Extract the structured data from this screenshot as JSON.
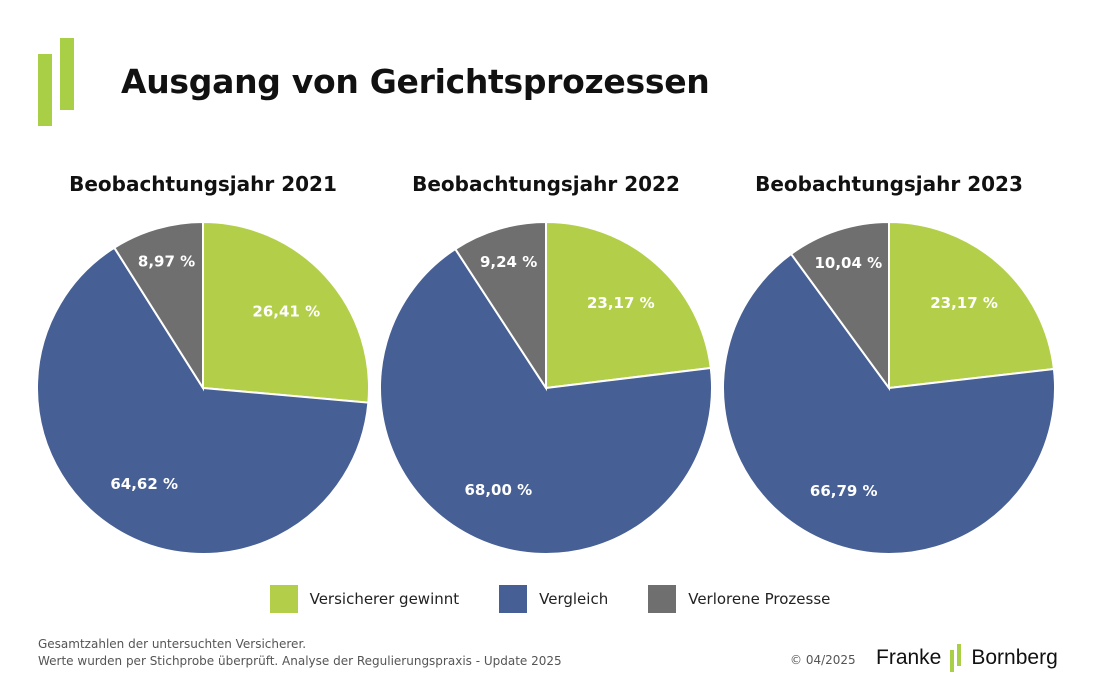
{
  "page": {
    "title": "Ausgang von Gerichtsprozessen"
  },
  "colors": {
    "accent": "#a8cf45"
  },
  "chart_data": [
    {
      "type": "pie",
      "title": "Beobachtungsjahr 2021",
      "labels": [
        "Versicherer gewinnt",
        "Vergleich",
        "Verlorene Prozesse"
      ],
      "values": [
        26.41,
        64.62,
        8.97
      ],
      "value_labels": [
        "26,41 %",
        "64,62 %",
        "8,97 %"
      ],
      "colors": [
        "#b3cf49",
        "#465f94",
        "#6f6f6f"
      ]
    },
    {
      "type": "pie",
      "title": "Beobachtungsjahr 2022",
      "labels": [
        "Versicherer gewinnt",
        "Vergleich",
        "Verlorene Prozesse"
      ],
      "values": [
        23.17,
        68.0,
        9.24
      ],
      "value_labels": [
        "23,17 %",
        "68,00 %",
        "9,24 %"
      ],
      "colors": [
        "#b3cf49",
        "#465f94",
        "#6f6f6f"
      ]
    },
    {
      "type": "pie",
      "title": "Beobachtungsjahr 2023",
      "labels": [
        "Versicherer gewinnt",
        "Vergleich",
        "Verlorene Prozesse"
      ],
      "values": [
        23.17,
        66.79,
        10.04
      ],
      "value_labels": [
        "23,17 %",
        "66,79 %",
        "10,04 %"
      ],
      "colors": [
        "#b3cf49",
        "#465f94",
        "#6f6f6f"
      ]
    }
  ],
  "legend": {
    "placement": "bottom",
    "items": [
      {
        "label": "Versicherer gewinnt",
        "color": "#b3cf49"
      },
      {
        "label": "Vergleich",
        "color": "#465f94"
      },
      {
        "label": "Verlorene Prozesse",
        "color": "#6f6f6f"
      }
    ]
  },
  "footer": {
    "note_line1": "Gesamtzahlen der untersuchten Versicherer.",
    "note_line2": "Werte wurden per Stichprobe überprüft. Analyse der Regulierungspraxis - Update 2025",
    "copyright": "© 04/2025",
    "brand_left": "Franke",
    "brand_right": "Bornberg"
  }
}
